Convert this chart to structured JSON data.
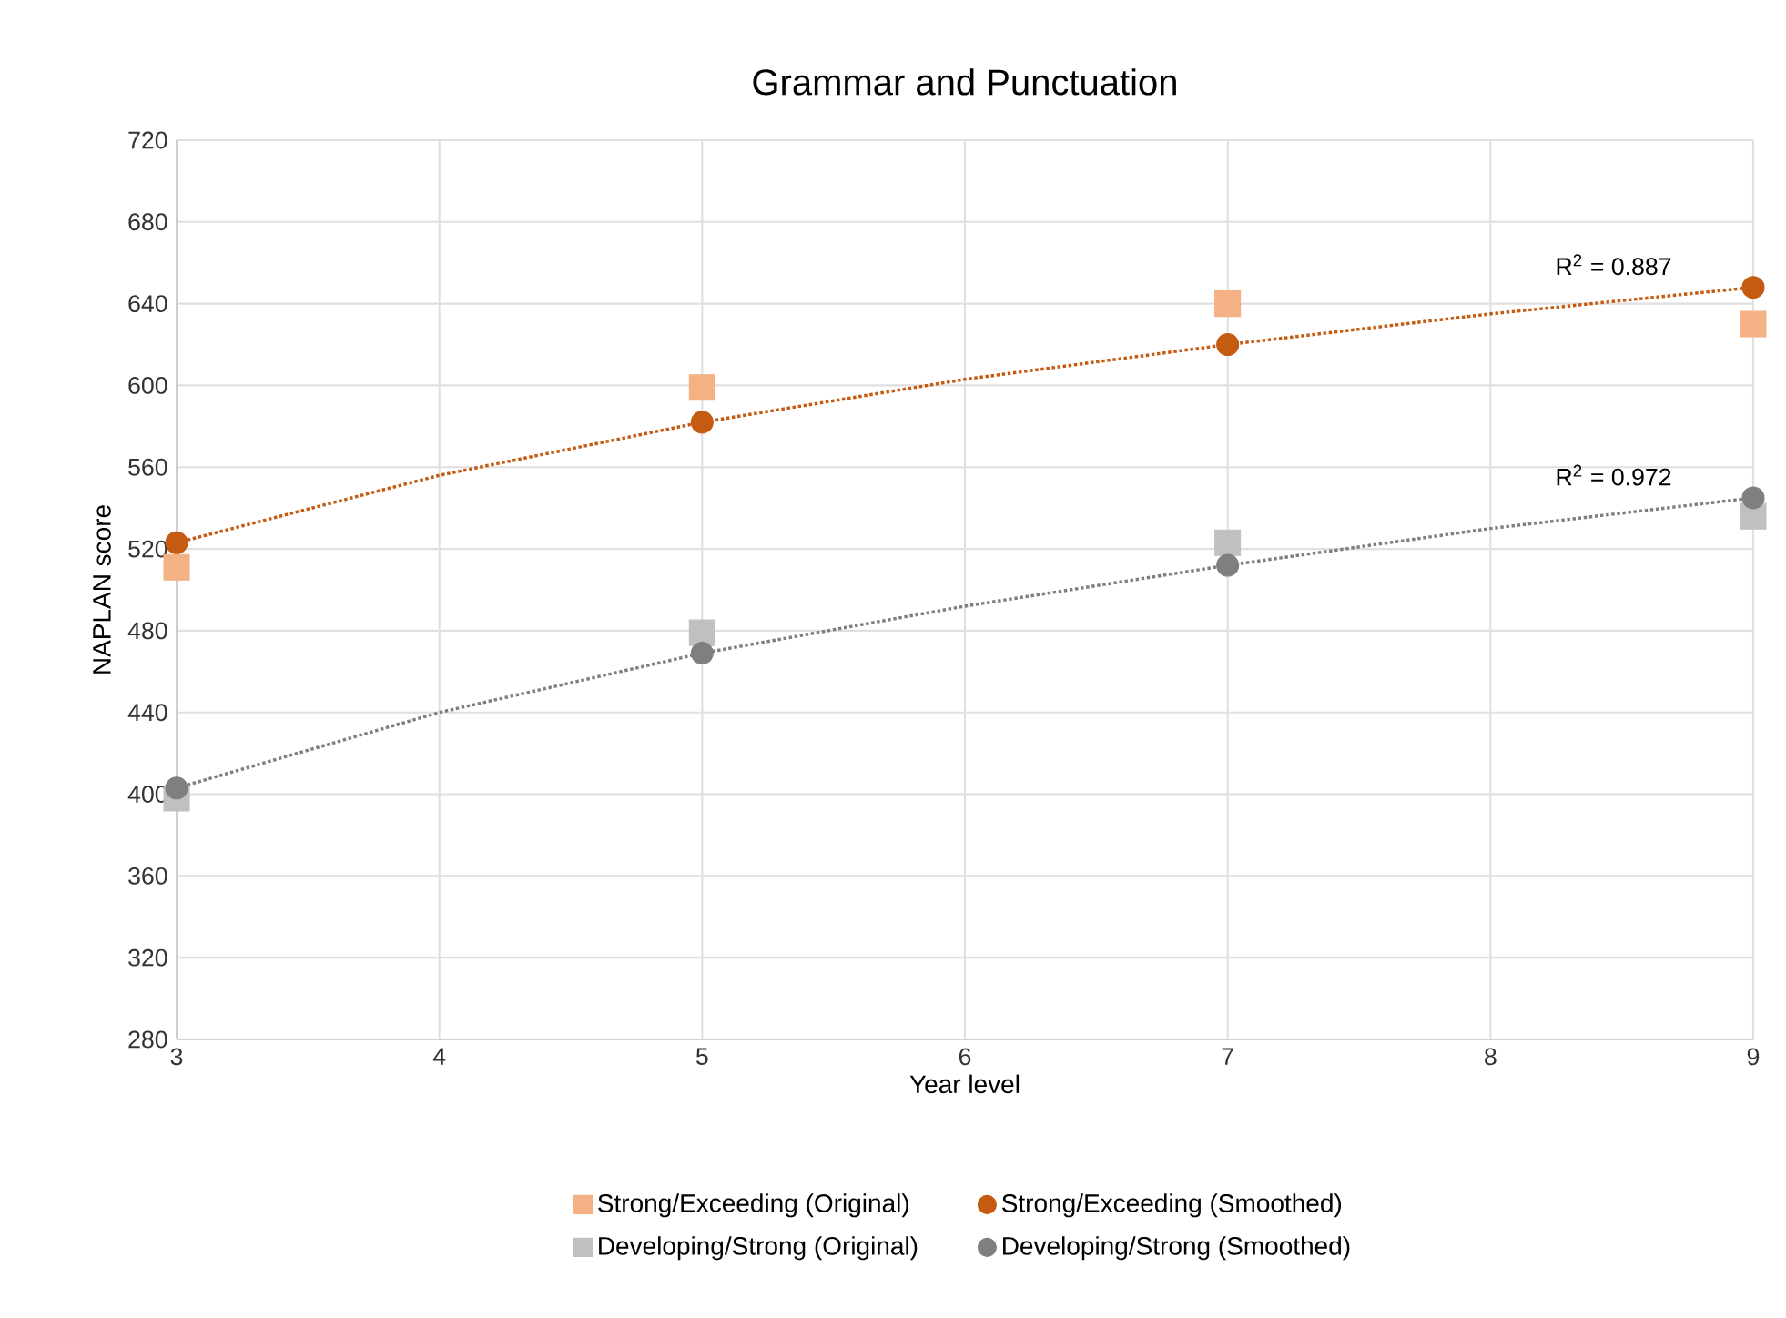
{
  "chart_data": {
    "type": "scatter",
    "title": "Grammar and Punctuation",
    "xlabel": "Year level",
    "ylabel": "NAPLAN score",
    "x": [
      3,
      5,
      7,
      9
    ],
    "series": [
      {
        "name": "Strong/Exceeding (Original)",
        "color": "#f4b183",
        "marker": "square",
        "values": [
          511,
          599,
          640,
          630
        ]
      },
      {
        "name": "Strong/Exceeding (Smoothed)",
        "color": "#c55a11",
        "marker": "circle",
        "values": [
          523,
          582,
          620,
          648
        ]
      },
      {
        "name": "Developing/Strong (Original)",
        "color": "#c0c0c0",
        "marker": "square",
        "values": [
          398,
          479,
          523,
          536
        ]
      },
      {
        "name": "Developing/Strong (Smoothed)",
        "color": "#7f7f7f",
        "marker": "circle",
        "values": [
          403,
          469,
          512,
          545
        ]
      },
      {
        "type": "line",
        "color": "#c55a11",
        "line_style": "dotted",
        "marker": "none",
        "x": [
          3,
          4,
          5,
          6,
          7,
          8,
          9
        ],
        "values": [
          523,
          556,
          582,
          603,
          620,
          635,
          648
        ]
      },
      {
        "type": "line",
        "color": "#7f7f7f",
        "line_style": "dotted",
        "marker": "none",
        "x": [
          3,
          4,
          5,
          6,
          7,
          8,
          9
        ],
        "values": [
          403,
          440,
          469,
          492,
          512,
          530,
          545
        ]
      }
    ],
    "annotations": [
      "R$^{2}$ = 0.887",
      "R$^{2}$ = 0.972"
    ],
    "xlim": [
      3,
      9
    ],
    "xticks": [
      3,
      4,
      5,
      6,
      7,
      8,
      9
    ],
    "ylim": [
      280,
      720
    ],
    "yticks": [
      280,
      320,
      360,
      400,
      440,
      480,
      520,
      560,
      600,
      640,
      680,
      720
    ],
    "grid": true,
    "legend": "bottom"
  }
}
